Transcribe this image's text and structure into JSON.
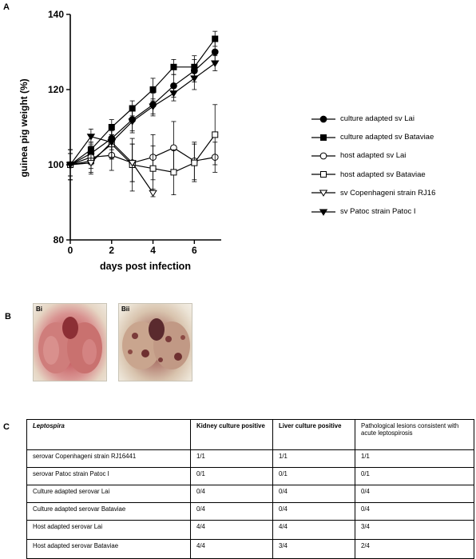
{
  "panels": {
    "a": "A",
    "b": "B",
    "c": "C"
  },
  "chart_data": {
    "type": "line",
    "xlabel": "days post infection",
    "ylabel": "guinea pig weight (%)",
    "xlim": [
      0,
      7.3
    ],
    "ylim": [
      80,
      140
    ],
    "xticks": [
      0,
      2,
      4,
      6
    ],
    "yticks": [
      80,
      100,
      120,
      140
    ],
    "grid": false,
    "legend": "right",
    "series": [
      {
        "name": "culture adapted sv Lai",
        "marker": "filled-circle",
        "x": [
          0,
          1,
          2,
          3,
          4,
          5,
          6,
          7
        ],
        "y": [
          100,
          103,
          107,
          112,
          116,
          121,
          125,
          130
        ],
        "err": [
          3,
          3,
          2,
          3,
          3,
          3,
          3,
          3
        ]
      },
      {
        "name": "culture adapted sv Bataviae",
        "marker": "filled-square",
        "x": [
          0,
          1,
          2,
          3,
          4,
          5,
          6,
          7
        ],
        "y": [
          100,
          104,
          110,
          115,
          120,
          126,
          126,
          133.5
        ],
        "err": [
          3,
          2,
          2,
          2,
          3,
          2,
          3,
          2
        ]
      },
      {
        "name": "host adapted sv Lai",
        "marker": "open-circle",
        "x": [
          0,
          1,
          2,
          3,
          4,
          5,
          6,
          7
        ],
        "y": [
          100,
          102,
          102.5,
          100.5,
          102,
          104.5,
          101,
          102
        ],
        "err": [
          4,
          3,
          4,
          5,
          6,
          7,
          5,
          4
        ]
      },
      {
        "name": "host adapted sv Bataviae",
        "marker": "open-square",
        "x": [
          0,
          1,
          2,
          3,
          4,
          5,
          6,
          7
        ],
        "y": [
          100,
          101,
          105.5,
          100,
          99,
          98,
          100.5,
          108
        ],
        "err": [
          4,
          3,
          4,
          7,
          6,
          6,
          5,
          8
        ]
      },
      {
        "name": "sv Copenhageni strain RJ16",
        "marker": "open-triangle-down",
        "x": [
          0,
          1,
          2,
          3,
          4
        ],
        "y": [
          100,
          100.5,
          106,
          100.5,
          92.5
        ],
        "err": [
          4,
          3,
          4,
          5,
          1
        ]
      },
      {
        "name": "sv Patoc strain Patoc I",
        "marker": "filled-triangle-down",
        "x": [
          0,
          1,
          2,
          3,
          4,
          5,
          6,
          7
        ],
        "y": [
          100,
          107.5,
          106,
          111.5,
          115.5,
          119,
          123,
          127
        ],
        "err": [
          3,
          2,
          2,
          3,
          2,
          2,
          3,
          2
        ]
      }
    ]
  },
  "photos": [
    {
      "label": "Bi"
    },
    {
      "label": "Bii"
    }
  ],
  "table": {
    "headers": [
      "Leptospira",
      "Kidney culture positive",
      "Liver culture positive",
      "Pathological lesions consistent with acute leptospirosis"
    ],
    "rows": [
      [
        "serovar Copenhageni strain RJ16441",
        "1/1",
        "1/1",
        "1/1"
      ],
      [
        "serovar Patoc strain Patoc I",
        "0/1",
        "0/1",
        "0/1"
      ],
      [
        "Culture adapted serovar Lai",
        "0/4",
        "0/4",
        "0/4"
      ],
      [
        "Culture adapted serovar Bataviae",
        "0/4",
        "0/4",
        "0/4"
      ],
      [
        "Host adapted serovar Lai",
        "4/4",
        "4/4",
        "3/4"
      ],
      [
        "Host adapted serovar Bataviae",
        "4/4",
        "3/4",
        "2/4"
      ]
    ]
  }
}
